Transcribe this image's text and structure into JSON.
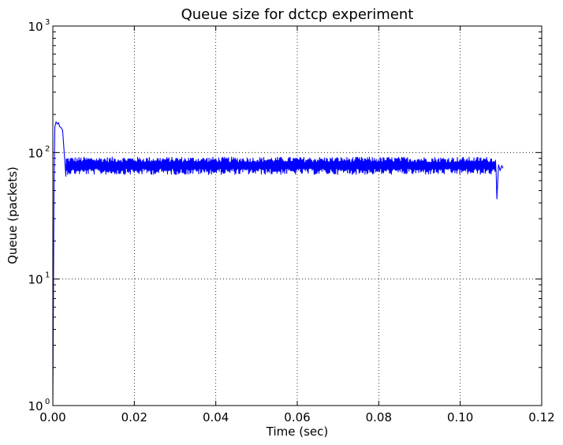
{
  "chart_data": {
    "type": "line",
    "title": "Queue size for dctcp experiment",
    "xlabel": "Time (sec)",
    "ylabel": "Queue (packets)",
    "xlim": [
      0.0,
      0.12
    ],
    "ylim": [
      1,
      1000
    ],
    "yscale": "log",
    "grid": true,
    "x_ticks": [
      "0.00",
      "0.02",
      "0.04",
      "0.06",
      "0.08",
      "0.10",
      "0.12"
    ],
    "x_tick_values": [
      0.0,
      0.02,
      0.04,
      0.06,
      0.08,
      0.1,
      0.12
    ],
    "y_ticks": [
      {
        "base": "10",
        "exp": "0",
        "value": 1
      },
      {
        "base": "10",
        "exp": "1",
        "value": 10
      },
      {
        "base": "10",
        "exp": "2",
        "value": 100
      },
      {
        "base": "10",
        "exp": "3",
        "value": 1000
      }
    ],
    "series": [
      {
        "color": "#0000ff",
        "points": [
          [
            0.0,
            1
          ],
          [
            0.00015,
            8
          ],
          [
            0.0003,
            60
          ],
          [
            0.0005,
            160
          ],
          [
            0.0008,
            175
          ],
          [
            0.0011,
            168
          ],
          [
            0.0014,
            172
          ],
          [
            0.0017,
            160
          ],
          [
            0.002,
            158
          ],
          [
            0.0024,
            150
          ],
          [
            0.0027,
            110
          ],
          [
            0.003,
            80
          ],
          [
            0.0032,
            65
          ]
        ],
        "steady_segment": {
          "x_start": 0.0033,
          "x_end": 0.1088,
          "center": 79,
          "low": 67,
          "high": 92
        },
        "tail": [
          [
            0.1088,
            72
          ],
          [
            0.109,
            43
          ],
          [
            0.1094,
            80
          ],
          [
            0.1098,
            72
          ],
          [
            0.1102,
            79
          ],
          [
            0.1105,
            75
          ]
        ]
      }
    ]
  }
}
